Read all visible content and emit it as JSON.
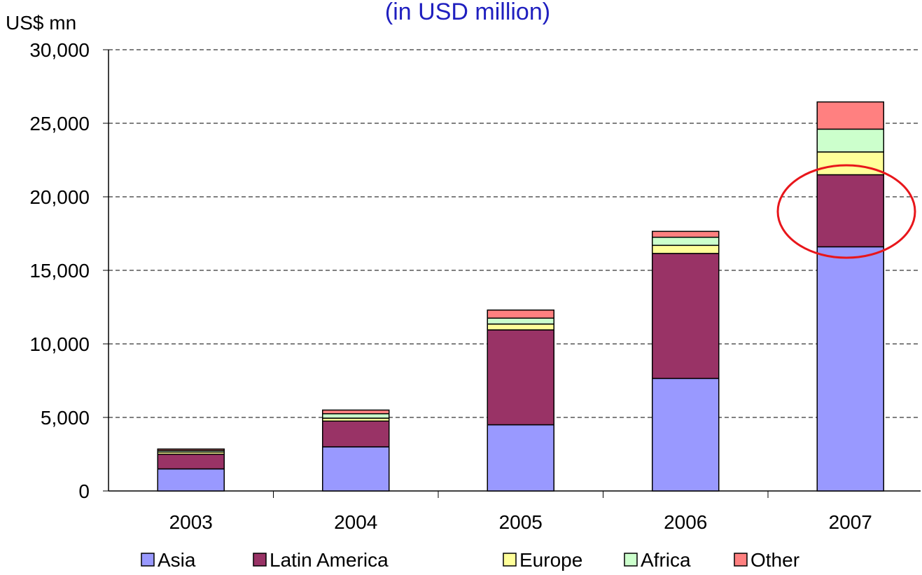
{
  "chart_data": {
    "type": "bar",
    "stacked": true,
    "title": "(in USD million)",
    "y_label": "US$ mn",
    "categories": [
      "2003",
      "2004",
      "2005",
      "2006",
      "2007"
    ],
    "series": [
      {
        "name": "Asia",
        "color": "#9999ff",
        "values": [
          1500,
          3000,
          4500,
          7650,
          16600
        ]
      },
      {
        "name": "Latin America",
        "color": "#993366",
        "values": [
          1000,
          1750,
          6450,
          8500,
          4900
        ]
      },
      {
        "name": "Europe",
        "color": "#ffff99",
        "values": [
          150,
          200,
          400,
          550,
          1550
        ]
      },
      {
        "name": "Africa",
        "color": "#ccffcc",
        "values": [
          100,
          300,
          400,
          550,
          1550
        ]
      },
      {
        "name": "Other",
        "color": "#ff8080",
        "values": [
          100,
          250,
          550,
          400,
          1850
        ]
      }
    ],
    "ylim": [
      0,
      30000
    ],
    "yticks": [
      0,
      {
        "value": 5000,
        "label": "5,000"
      },
      {
        "value": 10000,
        "label": "10,000"
      },
      {
        "value": 15000,
        "label": "15,000"
      },
      {
        "value": 20000,
        "label": "20,000"
      },
      {
        "value": 25000,
        "label": "25,000"
      },
      {
        "value": 30000,
        "label": "30,000"
      }
    ],
    "grid": true,
    "legend": "bottom"
  }
}
